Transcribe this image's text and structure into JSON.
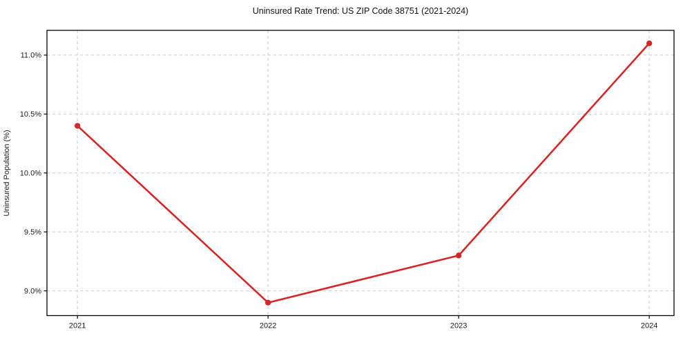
{
  "chart_data": {
    "type": "line",
    "title": "Uninsured Rate Trend: US ZIP Code 38751 (2021-2024)",
    "xlabel": "",
    "ylabel": "Uninsured Population (%)",
    "x": [
      2021,
      2022,
      2023,
      2024
    ],
    "values": [
      10.4,
      8.9,
      9.3,
      11.1
    ],
    "xticks": [
      2021,
      2022,
      2023,
      2024
    ],
    "xtick_labels": [
      "2021",
      "2022",
      "2023",
      "2024"
    ],
    "yticks": [
      9.0,
      9.5,
      10.0,
      10.5,
      11.0
    ],
    "ytick_labels": [
      "9.0%",
      "9.5%",
      "10.0%",
      "10.5%",
      "11.0%"
    ],
    "xlim": [
      2020.84,
      2024.13
    ],
    "ylim": [
      8.79,
      11.21
    ],
    "grid": true,
    "grid_style": "dashed",
    "legend_position": "none",
    "line_color": "#d62728",
    "marker": "circle",
    "marker_color": "#d62728",
    "grid_color": "#cccccc",
    "border_color": "#000000",
    "background_color": "#ffffff"
  }
}
